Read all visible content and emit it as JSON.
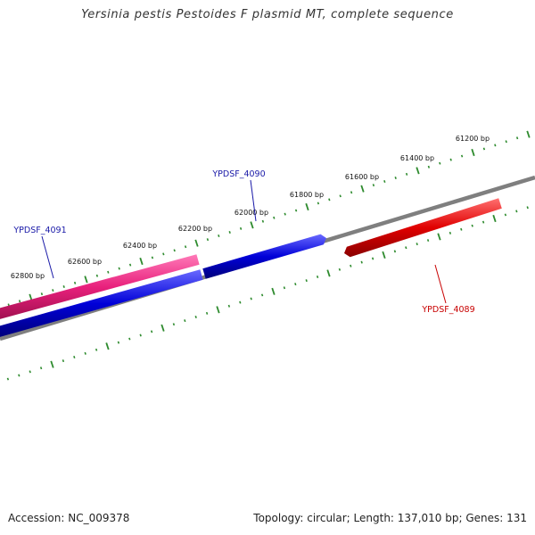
{
  "title": "Yersinia pestis Pestoides F plasmid MT, complete sequence",
  "footer": {
    "accession": "Accession: NC_009378",
    "summary": "Topology: circular; Length: 137,010 bp; Genes: 131"
  },
  "colors": {
    "backbone": "#7f7f7f",
    "ticks": "#2e8b2e",
    "label_blue": "#1a1aa8",
    "label_red": "#c80000"
  },
  "scale": {
    "unit": "bp",
    "labeled_positions": [
      61200,
      61400,
      61600,
      61800,
      62000,
      62200,
      62400,
      62600,
      62800
    ]
  },
  "genes": [
    {
      "name": "YPDSF_4091",
      "strand": "+",
      "color": "#e8207c"
    },
    {
      "name": "YPDSF_4090",
      "strand": "-",
      "color": "#0000d8"
    },
    {
      "name": "YPDSF_4089",
      "strand": "-",
      "color": "#e00000"
    }
  ]
}
